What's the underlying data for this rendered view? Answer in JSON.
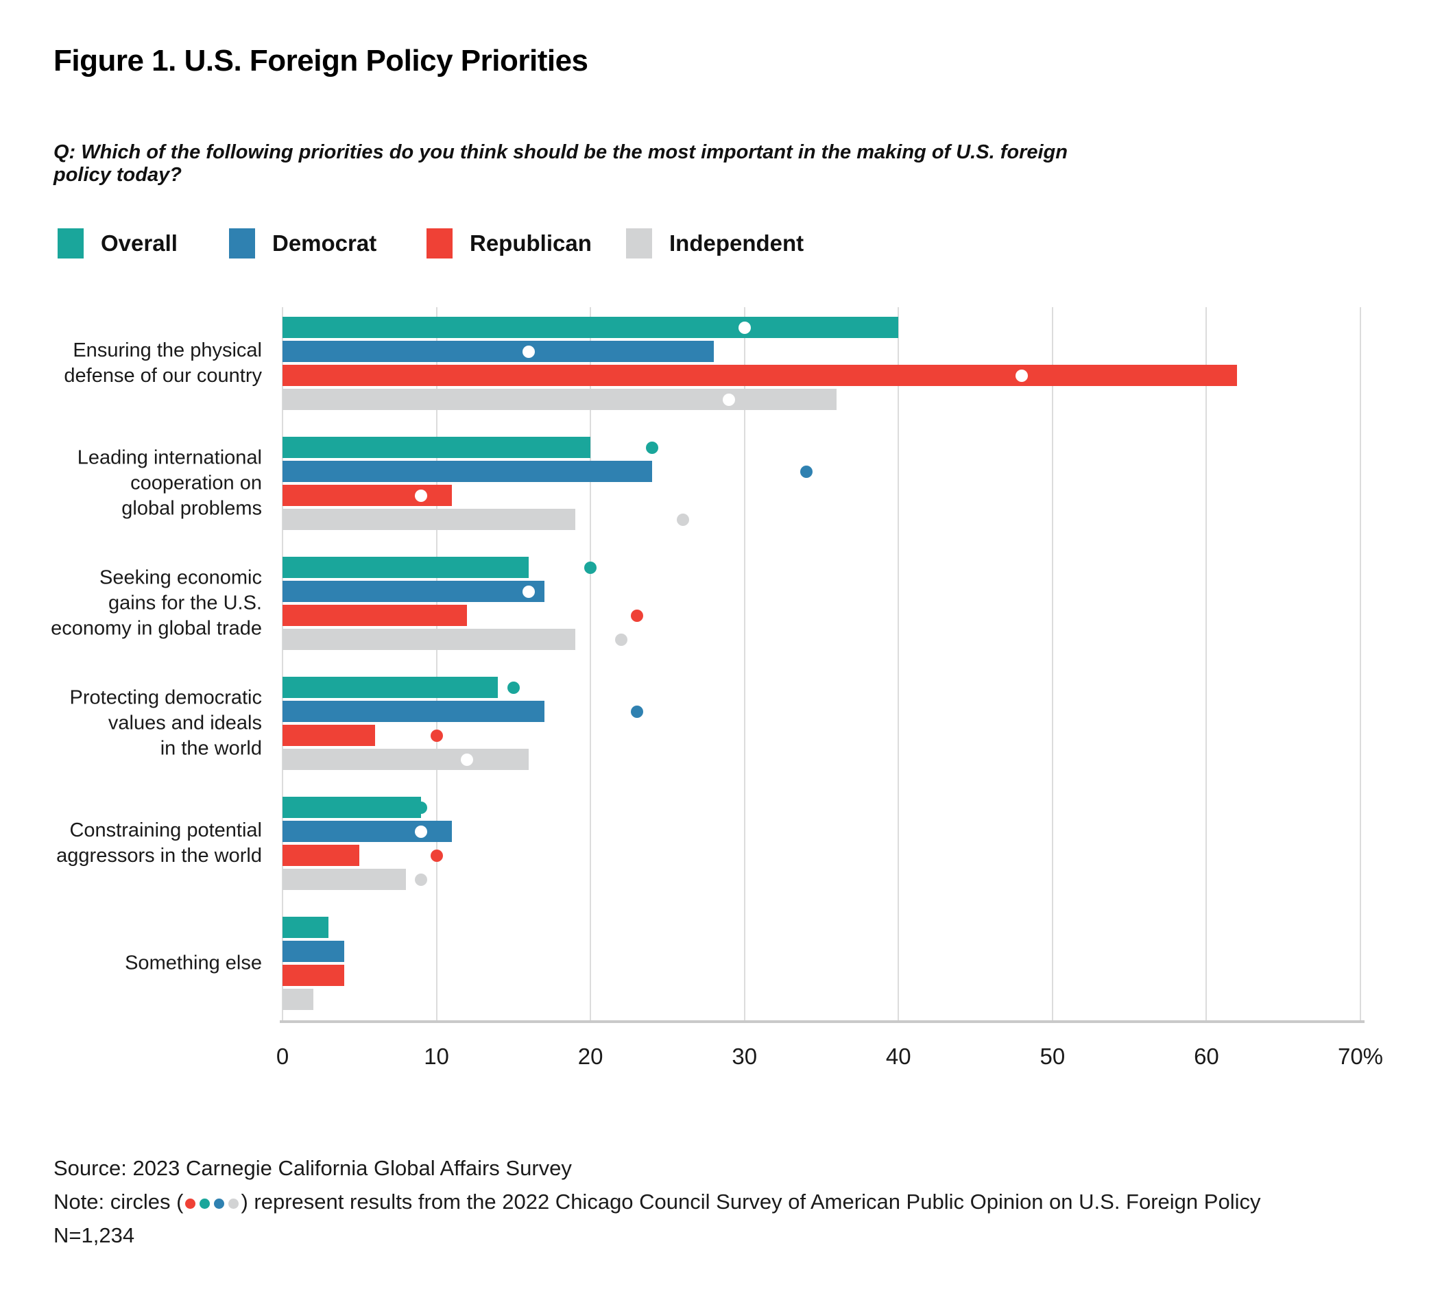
{
  "title": "Figure 1. U.S. Foreign Policy Priorities",
  "question": "Q: Which of the following priorities do you think should be the most important in the making of U.S. foreign policy today?",
  "legend": {
    "items": [
      {
        "label": "Overall",
        "color": "#1AA69B"
      },
      {
        "label": "Democrat",
        "color": "#2F81B1"
      },
      {
        "label": "Republican",
        "color": "#EF4136"
      },
      {
        "label": "Independent",
        "color": "#D2D3D4"
      }
    ]
  },
  "chart_data": {
    "type": "bar",
    "orientation": "horizontal",
    "value_unit": "percent",
    "xlim": [
      0,
      70
    ],
    "ticks": [
      0,
      10,
      20,
      30,
      40,
      50,
      60,
      70
    ],
    "tick_labels": [
      "0",
      "10",
      "20",
      "30",
      "40",
      "50",
      "60",
      "70%"
    ],
    "grid": "vertical",
    "legend_position": "top",
    "categories": [
      "Ensuring the physical\ndefense of our country",
      "Leading international\ncooperation on\nglobal problems",
      "Seeking economic\ngains for the U.S.\neconomy in global trade",
      "Protecting democratic\nvalues and ideals\nin the world",
      "Constraining potential\naggressors in the world",
      "Something else"
    ],
    "series": [
      {
        "name": "Overall",
        "color": "#1AA69B",
        "values": [
          40,
          20,
          16,
          14,
          9,
          3
        ],
        "dots_2022": [
          30,
          24,
          20,
          15,
          9,
          null
        ]
      },
      {
        "name": "Democrat",
        "color": "#2F81B1",
        "values": [
          28,
          24,
          17,
          17,
          11,
          4
        ],
        "dots_2022": [
          16,
          34,
          16,
          23,
          9,
          null
        ]
      },
      {
        "name": "Republican",
        "color": "#EF4136",
        "values": [
          62,
          11,
          12,
          6,
          5,
          4
        ],
        "dots_2022": [
          48,
          9,
          23,
          10,
          10,
          null
        ]
      },
      {
        "name": "Independent",
        "color": "#D2D3D4",
        "values": [
          36,
          19,
          19,
          16,
          8,
          2
        ],
        "dots_2022": [
          29,
          26,
          22,
          12,
          9,
          null
        ]
      }
    ],
    "dot_inside_bar_color": "#FFFFFF"
  },
  "footer": {
    "source": "Source: 2023 Carnegie California Global Affairs Survey",
    "note_prefix": "Note: circles (",
    "note_dot_colors": [
      "#EF4136",
      "#1AA69B",
      "#2F81B1",
      "#D2D3D4"
    ],
    "note_suffix": ") represent results from the 2022 Chicago Council Survey of American Public Opinion on U.S. Foreign Policy",
    "sample": "N=1,234"
  }
}
